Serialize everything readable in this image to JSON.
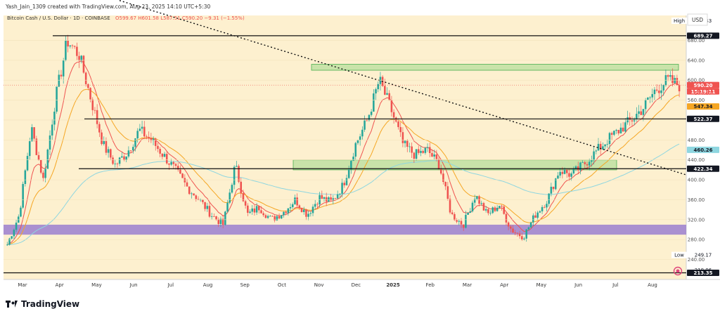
{
  "header": {
    "creator": "Yash_Jain_1309 created with TradingView.com, Aug 23, 2025 14:10 UTC+5:30",
    "symbol": "Bitcoin Cash / U.S. Dollar · 1D · COINBASE",
    "ohlc": "O599.67 H601.58 L587.51 C590.20 −9.31 (−1.55%)"
  },
  "currency": "USD",
  "brand": "TradingView",
  "colors": {
    "background": "#fdf0cf",
    "up": "#26a69a",
    "down": "#ef5350",
    "ema_fast": "#ef5350",
    "ema_mid": "#f5a623",
    "ema_slow": "#8ed6e0",
    "zone_green": "#9ed88a",
    "zone_purple": "#9b7fd0"
  },
  "chart_data": {
    "type": "candlestick",
    "ylim": [
      200,
      730
    ],
    "y_ticks": [
      240,
      280,
      320,
      360,
      400,
      440,
      480,
      520,
      560,
      600,
      640,
      680
    ],
    "x_labels": [
      "Mar",
      "Apr",
      "May",
      "Jun",
      "Jul",
      "Aug",
      "Sep",
      "Oct",
      "Nov",
      "Dec",
      "2025",
      "Feb",
      "Mar",
      "Apr",
      "May",
      "Jun",
      "Jul",
      "Aug"
    ],
    "price_labels": [
      {
        "tag": "High",
        "value": 719.43,
        "text": "719.43",
        "style": "plain"
      },
      {
        "value": 689.27,
        "text": "689.27",
        "style": "black"
      },
      {
        "value": 590.2,
        "text": "590.20",
        "style": "red"
      },
      {
        "value": 590.2,
        "text": "15:19:11",
        "style": "red",
        "offset": 1
      },
      {
        "value": 574.07,
        "text": "574.07",
        "style": "plain-red"
      },
      {
        "value": 547.34,
        "text": "547.34",
        "style": "orange"
      },
      {
        "value": 522.37,
        "text": "522.37",
        "style": "black"
      },
      {
        "value": 460.26,
        "text": "460.26",
        "style": "teal"
      },
      {
        "value": 422.34,
        "text": "422.34",
        "style": "black"
      },
      {
        "tag": "Low",
        "value": 249.17,
        "text": "249.17",
        "style": "plain"
      },
      {
        "value": 218.96,
        "text": "218.96",
        "style": "plain"
      },
      {
        "value": 213.35,
        "text": "213.35",
        "style": "black"
      }
    ],
    "horizontal_levels": [
      689.27,
      522.37,
      422.34,
      213.35
    ],
    "zones": [
      {
        "name": "supply-zone",
        "y_low": 620,
        "y_high": 632,
        "color": "green"
      },
      {
        "name": "demand-zone",
        "y_low": 420,
        "y_high": 440,
        "color": "green"
      },
      {
        "name": "support-band",
        "y_low": 290,
        "y_high": 310,
        "color": "purple"
      }
    ],
    "trendline": {
      "from_price": 760,
      "to_price": 410
    },
    "close_path": [
      [
        "Mar",
        270
      ],
      [
        "Mar",
        330
      ],
      [
        "Mar",
        505
      ],
      [
        "Mar",
        400
      ],
      [
        "Apr",
        560
      ],
      [
        "Apr",
        680
      ],
      [
        "Apr",
        650
      ],
      [
        "Apr",
        560
      ],
      [
        "May",
        470
      ],
      [
        "May",
        430
      ],
      [
        "May",
        455
      ],
      [
        "May",
        500
      ],
      [
        "Jun",
        480
      ],
      [
        "Jun",
        450
      ],
      [
        "Jun",
        420
      ],
      [
        "Jul",
        385
      ],
      [
        "Jul",
        360
      ],
      [
        "Jul",
        330
      ],
      [
        "Aug",
        310
      ],
      [
        "Aug",
        430
      ],
      [
        "Aug",
        330
      ],
      [
        "Sep",
        345
      ],
      [
        "Sep",
        320
      ],
      [
        "Sep",
        335
      ],
      [
        "Oct",
        360
      ],
      [
        "Oct",
        330
      ],
      [
        "Oct",
        365
      ],
      [
        "Nov",
        355
      ],
      [
        "Nov",
        390
      ],
      [
        "Nov",
        470
      ],
      [
        "Dec",
        520
      ],
      [
        "Dec",
        600
      ],
      [
        "Dec",
        540
      ],
      [
        "2025",
        470
      ],
      [
        "2025",
        450
      ],
      [
        "2025",
        460
      ],
      [
        "Feb",
        430
      ],
      [
        "Feb",
        330
      ],
      [
        "Feb",
        310
      ],
      [
        "Mar",
        370
      ],
      [
        "Mar",
        330
      ],
      [
        "Mar",
        350
      ],
      [
        "Apr",
        300
      ],
      [
        "Apr",
        285
      ],
      [
        "Apr",
        330
      ],
      [
        "May",
        360
      ],
      [
        "May",
        420
      ],
      [
        "May",
        410
      ],
      [
        "Jun",
        430
      ],
      [
        "Jun",
        455
      ],
      [
        "Jun",
        480
      ],
      [
        "Jul",
        500
      ],
      [
        "Jul",
        520
      ],
      [
        "Jul",
        545
      ],
      [
        "Aug",
        580
      ],
      [
        "Aug",
        600
      ],
      [
        "Aug",
        590
      ]
    ]
  }
}
